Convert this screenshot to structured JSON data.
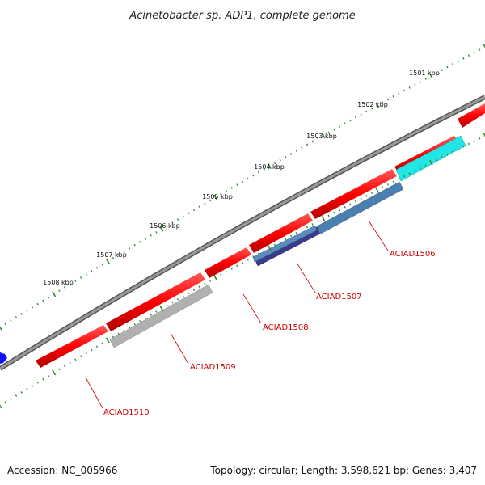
{
  "title": "Acinetobacter sp. ADP1, complete genome",
  "accession": "Accession: NC_005966",
  "topology": "Topology: circular; Length: 3,598,621 bp; Genes: 3,407",
  "kbp_labels": [
    "1501 kbp",
    "1502 kbp",
    "1503 kbp",
    "1504 kbp",
    "1505 kbp",
    "1506 kbp",
    "1507 kbp",
    "1508 kbp"
  ],
  "gene_labels": [
    "ACIAD1506",
    "ACIAD1507",
    "ACIAD1508",
    "ACIAD1509",
    "ACIAD1510"
  ],
  "colors": {
    "backbone": "#777777",
    "cds": "#ff0000",
    "ticks": "#2e8b2e",
    "label_lines": "#cc0000",
    "cyan_feature": "#22e6e6",
    "steelblue_feature": "#4a7fb0",
    "darkblue_feature": "#3a3a8a",
    "gray_feature": "#b0b0b0",
    "blue_feature": "#1010ff"
  }
}
